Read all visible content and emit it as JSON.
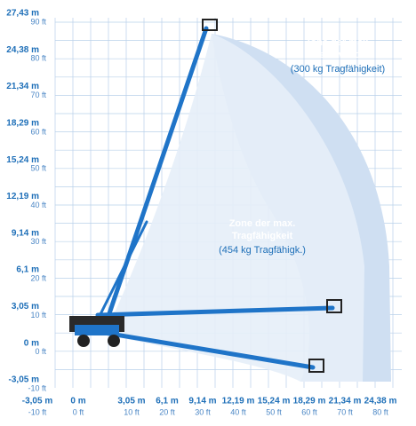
{
  "y_axis": [
    {
      "meters": "27,43 m",
      "feet": "90 ft"
    },
    {
      "meters": "24,38 m",
      "feet": "80 ft"
    },
    {
      "meters": "21,34 m",
      "feet": "70 ft"
    },
    {
      "meters": "18,29 m",
      "feet": "60 ft"
    },
    {
      "meters": "15,24 m",
      "feet": "50 ft"
    },
    {
      "meters": "12,19 m",
      "feet": "40 ft"
    },
    {
      "meters": "9,14 m",
      "feet": "30 ft"
    },
    {
      "meters": "6,1 m",
      "feet": "20 ft"
    },
    {
      "meters": "3,05 m",
      "feet": "10 ft"
    },
    {
      "meters": "0 m",
      "feet": "0 ft"
    },
    {
      "meters": "-3,05 m",
      "feet": "-10 ft"
    }
  ],
  "x_axis": [
    {
      "meters": "-3,05 m",
      "feet": "-10 ft"
    },
    {
      "meters": "0 m",
      "feet": "0 ft"
    },
    {
      "meters": "3,05 m",
      "feet": "10 ft"
    },
    {
      "meters": "6,1 m",
      "feet": "20 ft"
    },
    {
      "meters": "9,14 m",
      "feet": "30 ft"
    },
    {
      "meters": "12,19 m",
      "feet": "40 ft"
    },
    {
      "meters": "15,24 m",
      "feet": "50 ft"
    },
    {
      "meters": "18,29 m",
      "feet": "60 ft"
    },
    {
      "meters": "21,34 m",
      "feet": "70 ft"
    },
    {
      "meters": "24,38 m",
      "feet": "80 ft"
    }
  ],
  "zones": [
    {
      "title": [
        "Zone der max.",
        "Reichweite"
      ],
      "capacity": "(300 kg Tragfähigkeit)"
    },
    {
      "title": [
        "Zone der max.",
        "Tragfähigkeit"
      ],
      "capacity": "(454 kg Tragfähigk.)"
    }
  ]
}
